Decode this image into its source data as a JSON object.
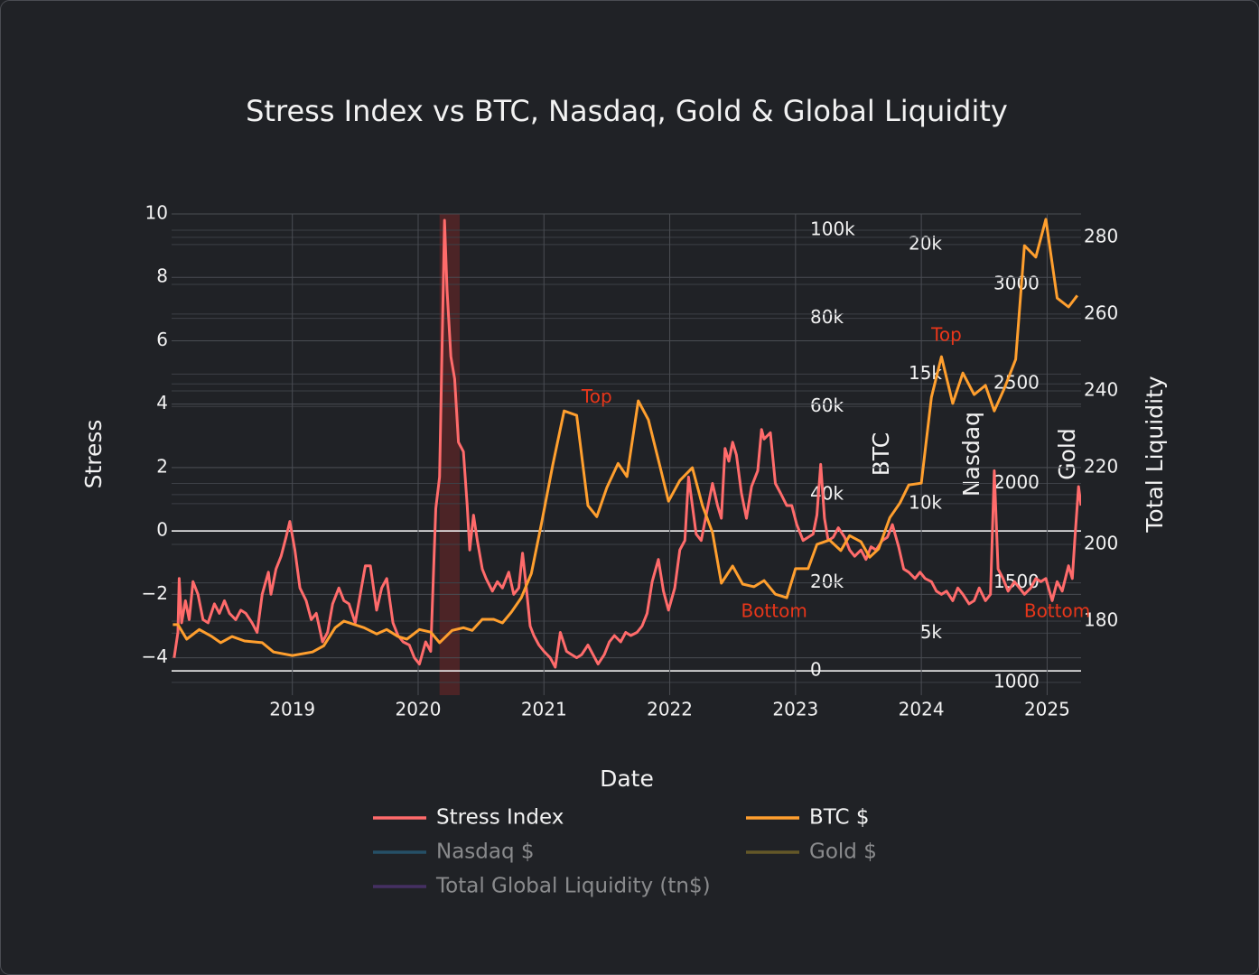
{
  "chart_data": {
    "type": "line",
    "title": "Stress Index vs BTC, Nasdaq, Gold & Global Liquidity",
    "xlabel": "Date",
    "xlim": [
      2018.04,
      2025.27
    ],
    "xticks": [
      2019,
      2020,
      2021,
      2022,
      2023,
      2024,
      2025
    ],
    "ylabel": "Stress",
    "ylim": [
      -5.18,
      10
    ],
    "yticks": [
      {
        "value": -4,
        "label": "−4"
      },
      {
        "value": -2,
        "label": "−2"
      },
      0,
      2,
      4,
      6,
      8,
      10
    ],
    "grid": true,
    "zeroline": true,
    "y_axes": [
      {
        "name": "y2",
        "label": "BTC",
        "lim": [
          -5500,
          103700
        ],
        "ticks": [
          0,
          {
            "value": 20000,
            "label": "20k"
          },
          {
            "value": 40000,
            "label": "40k"
          },
          {
            "value": 60000,
            "label": "60k"
          },
          {
            "value": 80000,
            "label": "80k"
          },
          {
            "value": 100000,
            "label": "100k"
          }
        ]
      },
      {
        "name": "y3",
        "label": "Nasdaq",
        "lim": [
          2610,
          21180
        ],
        "ticks": [
          {
            "value": 5000,
            "label": "5k"
          },
          {
            "value": 10000,
            "label": "10k"
          },
          {
            "value": 15000,
            "label": "15k"
          },
          {
            "value": 20000,
            "label": "20k"
          }
        ]
      },
      {
        "name": "y4",
        "label": "Gold",
        "lim": [
          936,
          3354
        ],
        "ticks": [
          1000,
          1500,
          2000,
          2500,
          3000
        ]
      },
      {
        "name": "y5",
        "label": "Total Liquidity",
        "lim": [
          160.7,
          286.1
        ],
        "ticks": [
          180,
          200,
          220,
          240,
          260,
          280
        ]
      }
    ],
    "shapes": [
      {
        "x0": 2020.17,
        "x1": 2020.33,
        "color": "rgba(160,40,40,0.35)"
      }
    ],
    "series": [
      {
        "name": "Stress Index",
        "color": "#ff6b6b",
        "axis": "y",
        "x": [
          2018.06,
          2018.09,
          2018.1,
          2018.12,
          2018.15,
          2018.18,
          2018.21,
          2018.25,
          2018.29,
          2018.33,
          2018.38,
          2018.42,
          2018.46,
          2018.5,
          2018.55,
          2018.59,
          2018.63,
          2018.68,
          2018.72,
          2018.76,
          2018.81,
          2018.83,
          2018.87,
          2018.91,
          2018.95,
          2018.98,
          2019.02,
          2019.06,
          2019.11,
          2019.15,
          2019.19,
          2019.24,
          2019.28,
          2019.32,
          2019.37,
          2019.41,
          2019.45,
          2019.5,
          2019.54,
          2019.58,
          2019.62,
          2019.67,
          2019.71,
          2019.75,
          2019.8,
          2019.84,
          2019.88,
          2019.93,
          2019.97,
          2020.01,
          2020.06,
          2020.1,
          2020.14,
          2020.17,
          2020.21,
          2020.23,
          2020.26,
          2020.29,
          2020.32,
          2020.36,
          2020.39,
          2020.41,
          2020.44,
          2020.47,
          2020.51,
          2020.54,
          2020.59,
          2020.63,
          2020.67,
          2020.72,
          2020.76,
          2020.8,
          2020.83,
          2020.86,
          2020.89,
          2020.92,
          2020.96,
          2021.0,
          2021.05,
          2021.09,
          2021.13,
          2021.18,
          2021.22,
          2021.26,
          2021.3,
          2021.35,
          2021.39,
          2021.43,
          2021.48,
          2021.52,
          2021.56,
          2021.61,
          2021.65,
          2021.69,
          2021.74,
          2021.78,
          2021.82,
          2021.86,
          2021.91,
          2021.95,
          2021.99,
          2022.04,
          2022.08,
          2022.12,
          2022.15,
          2022.18,
          2022.21,
          2022.25,
          2022.3,
          2022.34,
          2022.38,
          2022.41,
          2022.44,
          2022.47,
          2022.5,
          2022.53,
          2022.57,
          2022.61,
          2022.65,
          2022.7,
          2022.73,
          2022.75,
          2022.8,
          2022.84,
          2022.88,
          2022.93,
          2022.97,
          2023.01,
          2023.06,
          2023.1,
          2023.14,
          2023.17,
          2023.2,
          2023.23,
          2023.26,
          2023.3,
          2023.34,
          2023.39,
          2023.43,
          2023.47,
          2023.52,
          2023.56,
          2023.6,
          2023.64,
          2023.69,
          2023.73,
          2023.77,
          2023.82,
          2023.86,
          2023.9,
          2023.95,
          2023.99,
          2024.03,
          2024.08,
          2024.12,
          2024.16,
          2024.2,
          2024.25,
          2024.29,
          2024.33,
          2024.38,
          2024.42,
          2024.46,
          2024.51,
          2024.55,
          2024.58,
          2024.61,
          2024.65,
          2024.69,
          2024.74,
          2024.78,
          2024.82,
          2024.87,
          2024.91,
          2024.95,
          2024.99,
          2025.04,
          2025.08,
          2025.12,
          2025.17,
          2025.2,
          2025.22,
          2025.25,
          2025.27
        ],
        "values": [
          -4.0,
          -3.2,
          -1.5,
          -2.9,
          -2.2,
          -2.8,
          -1.6,
          -2.0,
          -2.8,
          -2.9,
          -2.3,
          -2.6,
          -2.2,
          -2.6,
          -2.8,
          -2.5,
          -2.6,
          -2.9,
          -3.2,
          -2.0,
          -1.3,
          -2.0,
          -1.2,
          -0.8,
          -0.2,
          0.3,
          -0.6,
          -1.8,
          -2.2,
          -2.8,
          -2.6,
          -3.5,
          -3.2,
          -2.3,
          -1.8,
          -2.2,
          -2.3,
          -2.9,
          -2.0,
          -1.1,
          -1.1,
          -2.5,
          -1.8,
          -1.5,
          -2.9,
          -3.3,
          -3.5,
          -3.6,
          -4.0,
          -4.2,
          -3.5,
          -3.8,
          0.7,
          1.7,
          9.8,
          7.6,
          5.5,
          4.8,
          2.8,
          2.5,
          0.8,
          -0.6,
          0.5,
          -0.3,
          -1.2,
          -1.5,
          -1.9,
          -1.6,
          -1.8,
          -1.3,
          -2.0,
          -1.8,
          -0.7,
          -1.8,
          -3.0,
          -3.3,
          -3.6,
          -3.8,
          -4.0,
          -4.3,
          -3.2,
          -3.8,
          -3.9,
          -4.0,
          -3.9,
          -3.6,
          -3.9,
          -4.2,
          -3.9,
          -3.5,
          -3.3,
          -3.5,
          -3.2,
          -3.3,
          -3.2,
          -3.0,
          -2.6,
          -1.6,
          -0.9,
          -1.9,
          -2.5,
          -1.8,
          -0.6,
          -0.3,
          1.7,
          0.8,
          -0.1,
          -0.3,
          0.7,
          1.5,
          0.8,
          0.4,
          2.6,
          2.2,
          2.8,
          2.4,
          1.2,
          0.4,
          1.4,
          1.9,
          3.2,
          2.9,
          3.1,
          1.5,
          1.2,
          0.8,
          0.8,
          0.2,
          -0.3,
          -0.2,
          -0.1,
          0.5,
          2.1,
          0.4,
          -0.3,
          -0.2,
          0.1,
          -0.2,
          -0.6,
          -0.8,
          -0.6,
          -0.9,
          -0.5,
          -0.6,
          -0.3,
          -0.2,
          0.2,
          -0.5,
          -1.2,
          -1.3,
          -1.5,
          -1.3,
          -1.5,
          -1.6,
          -1.9,
          -2.0,
          -1.9,
          -2.2,
          -1.8,
          -2.0,
          -2.3,
          -2.2,
          -1.8,
          -2.2,
          -2.0,
          1.9,
          -1.2,
          -1.5,
          -1.9,
          -1.6,
          -1.8,
          -2.0,
          -1.8,
          -1.5,
          -1.6,
          -1.5,
          -2.2,
          -1.6,
          -1.9,
          -1.1,
          -1.5,
          -0.3,
          1.4,
          0.8
        ]
      },
      {
        "name": "BTC $",
        "color": "#ff9f2e",
        "axis": "y2",
        "x": [
          2018.05,
          2018.09,
          2018.16,
          2018.26,
          2018.36,
          2018.43,
          2018.52,
          2018.62,
          2018.76,
          2018.85,
          2019.0,
          2019.16,
          2019.25,
          2019.34,
          2019.41,
          2019.57,
          2019.67,
          2019.75,
          2019.84,
          2019.91,
          2020.01,
          2020.1,
          2020.17,
          2020.27,
          2020.36,
          2020.43,
          2020.51,
          2020.6,
          2020.67,
          2020.74,
          2020.82,
          2020.9,
          2020.98,
          2021.07,
          2021.16,
          2021.26,
          2021.35,
          2021.42,
          2021.5,
          2021.59,
          2021.66,
          2021.75,
          2021.83,
          2021.92,
          2021.99,
          2022.08,
          2022.18,
          2022.26,
          2022.34,
          2022.41,
          2022.5,
          2022.58,
          2022.67,
          2022.75,
          2022.84,
          2022.93,
          2023.0,
          2023.1,
          2023.17,
          2023.27,
          2023.36,
          2023.43,
          2023.52,
          2023.59,
          2023.66,
          2023.75,
          2023.83,
          2023.9,
          2024.0,
          2024.08,
          2024.16,
          2024.25,
          2024.33,
          2024.42,
          2024.51,
          2024.58,
          2024.66,
          2024.75,
          2024.82,
          2024.91,
          2024.99,
          2025.08,
          2025.17,
          2025.24
        ],
        "values": [
          10500,
          10500,
          7200,
          9400,
          7800,
          6400,
          7800,
          6800,
          6400,
          4300,
          3500,
          4300,
          5700,
          9800,
          11300,
          9800,
          8400,
          9400,
          7800,
          7200,
          9400,
          8800,
          6400,
          9200,
          9800,
          9200,
          11700,
          11700,
          10900,
          13300,
          16600,
          22100,
          33400,
          46700,
          59000,
          58000,
          37500,
          35000,
          41600,
          47100,
          44100,
          61300,
          57000,
          46700,
          38500,
          43200,
          46100,
          37500,
          31400,
          19900,
          23800,
          19700,
          19100,
          20500,
          17400,
          16600,
          23200,
          23200,
          28700,
          29700,
          27300,
          30700,
          29300,
          25800,
          27700,
          34800,
          38100,
          42200,
          42600,
          62100,
          71300,
          60700,
          67600,
          62700,
          64800,
          59000,
          64100,
          70700,
          96500,
          93900,
          102500,
          84600,
          82600,
          85200
        ]
      },
      {
        "name": "Nasdaq $",
        "color": "#2b7fa8",
        "axis": "y3",
        "visible": "legendonly"
      },
      {
        "name": "Gold $",
        "color": "#a88f2a",
        "axis": "y4",
        "visible": "legendonly"
      },
      {
        "name": "Total Global Liquidity (tn$)",
        "color": "#6a3fa0",
        "axis": "y5",
        "visible": "legendonly"
      }
    ],
    "annotations": [
      {
        "text": "Top",
        "x": 2021.42,
        "y": 62000,
        "axis": "y2",
        "color": "#e8361a"
      },
      {
        "text": "Bottom",
        "x": 2022.83,
        "y": 13300,
        "axis": "y2",
        "color": "#e8361a"
      },
      {
        "text": "Top",
        "x": 2024.2,
        "y": 76000,
        "axis": "y2",
        "color": "#e8361a"
      },
      {
        "text": "Bottom",
        "x": 2025.08,
        "y": 13300,
        "axis": "y2",
        "color": "#e8361a"
      }
    ]
  }
}
